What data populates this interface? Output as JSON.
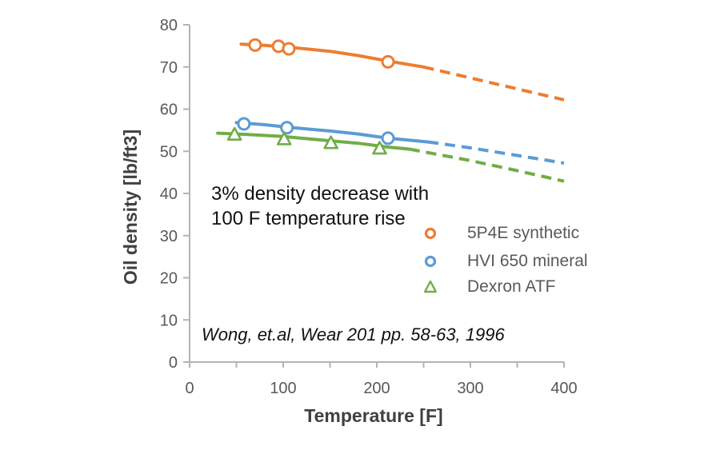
{
  "chart_data": {
    "type": "line",
    "title": "",
    "xlabel": "Temperature [F]",
    "ylabel": "Oil density [lb/ft3]",
    "xlim": [
      0,
      400
    ],
    "ylim": [
      0,
      80
    ],
    "x_ticks": [
      0,
      50,
      100,
      150,
      200,
      250,
      300,
      350,
      400
    ],
    "x_tick_labels": [
      "0",
      "",
      "100",
      "",
      "200",
      "",
      "300",
      "",
      "400"
    ],
    "y_ticks": [
      0,
      10,
      20,
      30,
      40,
      50,
      60,
      70,
      80
    ],
    "grid": false,
    "legend_position": "right-middle",
    "axis_color": "#b3b3b3",
    "tick_text_color": "#595959",
    "series": [
      {
        "name": "5P4E synthetic",
        "color": "#ED7D31",
        "marker": "circle",
        "markers": [
          [
            70,
            75.2
          ],
          [
            95,
            74.9
          ],
          [
            106,
            74.3
          ],
          [
            212,
            71.2
          ]
        ],
        "solid": [
          [
            55,
            75.4
          ],
          [
            80,
            75.1
          ],
          [
            110,
            74.6
          ],
          [
            150,
            73.7
          ],
          [
            180,
            72.7
          ],
          [
            212,
            71.4
          ],
          [
            250,
            70.0
          ]
        ],
        "dashed": [
          [
            250,
            70.0
          ],
          [
            300,
            67.4
          ],
          [
            350,
            64.8
          ],
          [
            400,
            62.2
          ]
        ]
      },
      {
        "name": "HVI 650 mineral",
        "color": "#5B9BD5",
        "marker": "circle",
        "markers": [
          [
            58,
            56.5
          ],
          [
            104,
            55.6
          ],
          [
            212,
            53.1
          ]
        ],
        "solid": [
          [
            50,
            56.8
          ],
          [
            80,
            56.3
          ],
          [
            110,
            55.6
          ],
          [
            150,
            54.8
          ],
          [
            180,
            54.1
          ],
          [
            212,
            53.1
          ],
          [
            255,
            52.2
          ]
        ],
        "dashed": [
          [
            255,
            52.2
          ],
          [
            300,
            50.8
          ],
          [
            350,
            49.0
          ],
          [
            400,
            47.2
          ]
        ]
      },
      {
        "name": "Dexron ATF",
        "color": "#70AD47",
        "marker": "triangle",
        "markers": [
          [
            48,
            53.9
          ],
          [
            101,
            52.8
          ],
          [
            151,
            51.9
          ],
          [
            203,
            50.6
          ]
        ],
        "solid": [
          [
            30,
            54.3
          ],
          [
            60,
            54.0
          ],
          [
            100,
            53.5
          ],
          [
            150,
            52.5
          ],
          [
            180,
            51.9
          ],
          [
            212,
            51.0
          ],
          [
            235,
            50.5
          ]
        ],
        "dashed": [
          [
            235,
            50.5
          ],
          [
            300,
            47.8
          ],
          [
            350,
            45.4
          ],
          [
            400,
            42.9
          ]
        ]
      }
    ],
    "annotation_lines": [
      "3% density decrease with",
      "100 F temperature rise"
    ],
    "citation": "Wong, et.al, Wear 201 pp. 58-63, 1996"
  }
}
